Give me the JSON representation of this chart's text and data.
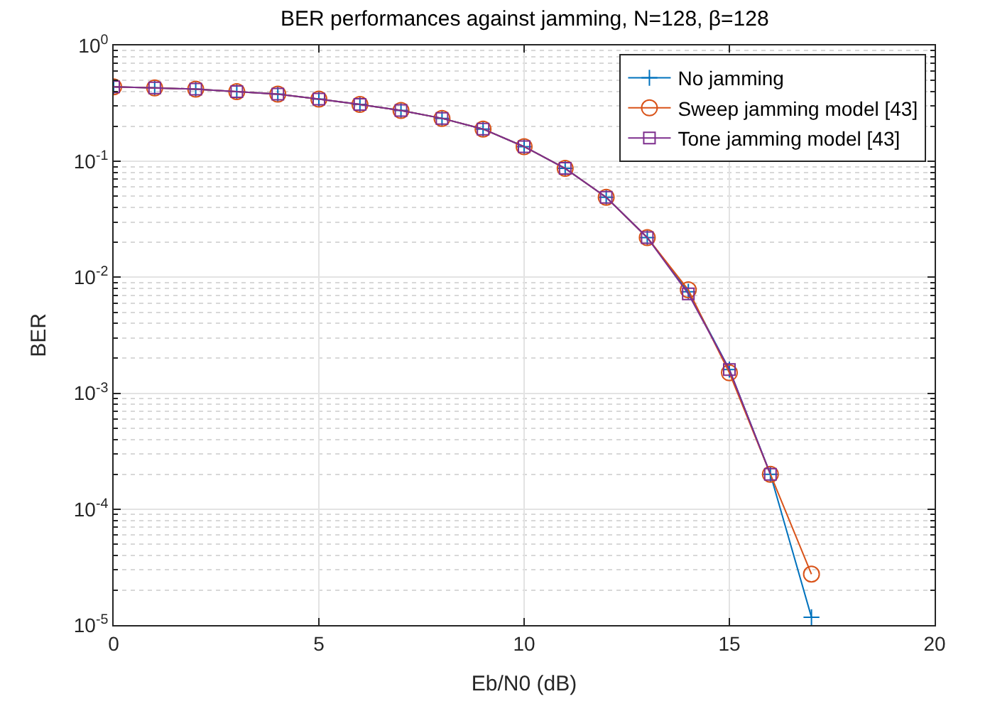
{
  "chart_data": {
    "type": "line",
    "title": "BER performances against jamming, N=128, β=128",
    "xlabel": "Eb/N0 (dB)",
    "ylabel": "BER",
    "x": [
      0,
      1,
      2,
      3,
      4,
      5,
      6,
      7,
      8,
      9,
      10,
      11,
      12,
      13,
      14,
      15,
      16,
      17
    ],
    "series": [
      {
        "name": "No jamming",
        "color": "#0072bd",
        "marker": "cross",
        "values": [
          0.44,
          0.43,
          0.42,
          0.4,
          0.38,
          0.345,
          0.31,
          0.275,
          0.235,
          0.19,
          0.134,
          0.087,
          0.049,
          0.022,
          0.0075,
          0.0016,
          0.0002,
          1.17e-05
        ]
      },
      {
        "name": "Sweep jamming model [43]",
        "color": "#d95319",
        "marker": "circle",
        "values": [
          0.44,
          0.43,
          0.42,
          0.4,
          0.38,
          0.345,
          0.31,
          0.275,
          0.235,
          0.19,
          0.134,
          0.087,
          0.049,
          0.022,
          0.0078,
          0.0015,
          0.0002,
          2.75e-05
        ]
      },
      {
        "name": "Tone jamming model [43]",
        "color": "#7e2f8e",
        "marker": "square",
        "values": [
          0.44,
          0.43,
          0.42,
          0.4,
          0.38,
          0.345,
          0.31,
          0.275,
          0.235,
          0.19,
          0.134,
          0.087,
          0.049,
          0.022,
          0.0072,
          0.0016,
          0.0002,
          null
        ]
      }
    ],
    "log": "y",
    "grid": true,
    "legend": "top right",
    "xlim": [
      0,
      20
    ],
    "xticks": [
      0,
      5,
      10,
      15,
      20
    ],
    "ylim": [
      1e-05,
      1
    ],
    "yticks": [
      {
        "value": 1e-05,
        "label": "10$^{-5}$"
      },
      {
        "value": 0.0001,
        "label": "10$^{-4}$"
      },
      {
        "value": 0.001,
        "label": "10$^{-3}$"
      },
      {
        "value": 0.01,
        "label": "10$^{-2}$"
      },
      {
        "value": 0.1,
        "label": "10$^{-1}$"
      },
      {
        "value": 1,
        "label": "10$^{0}$"
      }
    ]
  }
}
